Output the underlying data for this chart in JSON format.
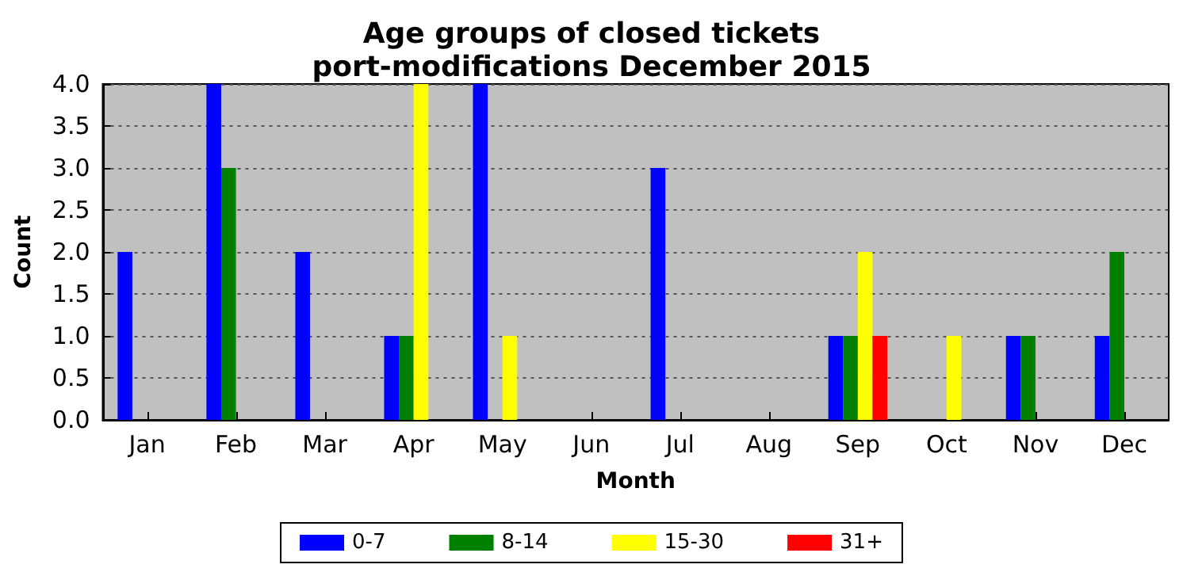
{
  "chart_data": {
    "type": "bar",
    "title": "Age groups of closed tickets\nport-modifications December 2015",
    "xlabel": "Month",
    "ylabel": "Count",
    "categories": [
      "Jan",
      "Feb",
      "Mar",
      "Apr",
      "May",
      "Jun",
      "Jul",
      "Aug",
      "Sep",
      "Oct",
      "Nov",
      "Dec"
    ],
    "series": [
      {
        "name": "0-7",
        "color": "#0000ff",
        "values": [
          2,
          4,
          2,
          1,
          4,
          0,
          3,
          0,
          1,
          0,
          1,
          1
        ]
      },
      {
        "name": "8-14",
        "color": "#008000",
        "values": [
          0,
          3,
          0,
          1,
          0,
          0,
          0,
          0,
          1,
          0,
          1,
          2
        ]
      },
      {
        "name": "15-30",
        "color": "#ffff00",
        "values": [
          0,
          0,
          0,
          4,
          1,
          0,
          0,
          0,
          2,
          1,
          0,
          0
        ]
      },
      {
        "name": "31+",
        "color": "#ff0000",
        "values": [
          0,
          0,
          0,
          0,
          0,
          0,
          0,
          0,
          1,
          0,
          0,
          0
        ]
      }
    ],
    "ylim": [
      0,
      4
    ],
    "yticks": [
      {
        "value": 0,
        "label": "0.0"
      },
      {
        "value": 0.5,
        "label": "0.5"
      },
      {
        "value": 1,
        "label": "1.0"
      },
      {
        "value": 1.5,
        "label": "1.5"
      },
      {
        "value": 2,
        "label": "2.0"
      },
      {
        "value": 2.5,
        "label": "2.5"
      },
      {
        "value": 3,
        "label": "3.0"
      },
      {
        "value": 3.5,
        "label": "3.5"
      },
      {
        "value": 4,
        "label": "4.0"
      }
    ],
    "grid": "y",
    "legend": "bottom"
  }
}
